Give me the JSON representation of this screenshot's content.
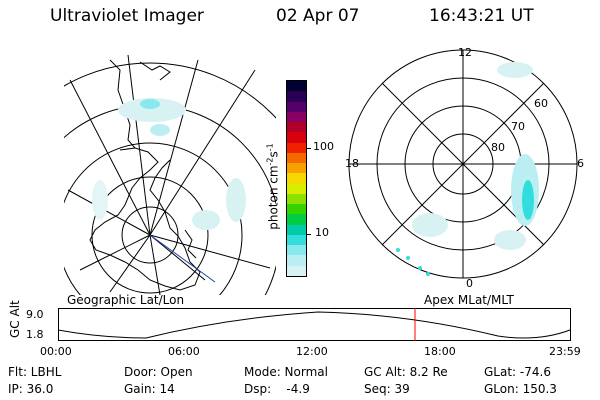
{
  "header": {
    "instrument": "Ultraviolet Imager",
    "date": "02 Apr 07",
    "time": "16:43:21 UT"
  },
  "left_panel": {
    "caption": "Geographic Lat/Lon"
  },
  "right_panel": {
    "caption": "Apex MLat/MLT",
    "mlt_labels": {
      "top": "12",
      "right": "6",
      "bottom": "0",
      "left": "18"
    },
    "mlat_labels": [
      "60",
      "70",
      "80"
    ]
  },
  "colorbar": {
    "unit_label_main": "photon cm",
    "unit_sup1": "-2",
    "unit_mid": "s",
    "unit_sup2": "-1",
    "ticks": [
      "100",
      "10"
    ],
    "colors": [
      "#000033",
      "#2a0055",
      "#55006a",
      "#880066",
      "#b0002a",
      "#d8000a",
      "#ee2200",
      "#f56a00",
      "#f8a000",
      "#f4d800",
      "#d6ee00",
      "#8ee000",
      "#34d400",
      "#00cc44",
      "#00ccaa",
      "#33dddd",
      "#88e8ee",
      "#bbeef2",
      "#d8f2f4"
    ]
  },
  "altitude_plot": {
    "ylabel": "GC Alt",
    "y_ticks": [
      "9.0",
      "1.8"
    ],
    "x_ticks": [
      "00:00",
      "06:00",
      "12:00",
      "18:00",
      "23:59"
    ],
    "current_time_marker_color": "#ff0000"
  },
  "footer": {
    "row1": {
      "flt": "Flt: LBHL",
      "door": "Door: Open",
      "mode": "Mode: Normal",
      "gcalt": "GC Alt: 8.2 Re",
      "glat": "GLat: -74.6"
    },
    "row2": {
      "ip": "IP: 36.0",
      "gain": "Gain: 14",
      "dsp": "Dsp:    -4.9",
      "seq": "Seq: 39",
      "glon": "GLon: 150.3"
    }
  }
}
